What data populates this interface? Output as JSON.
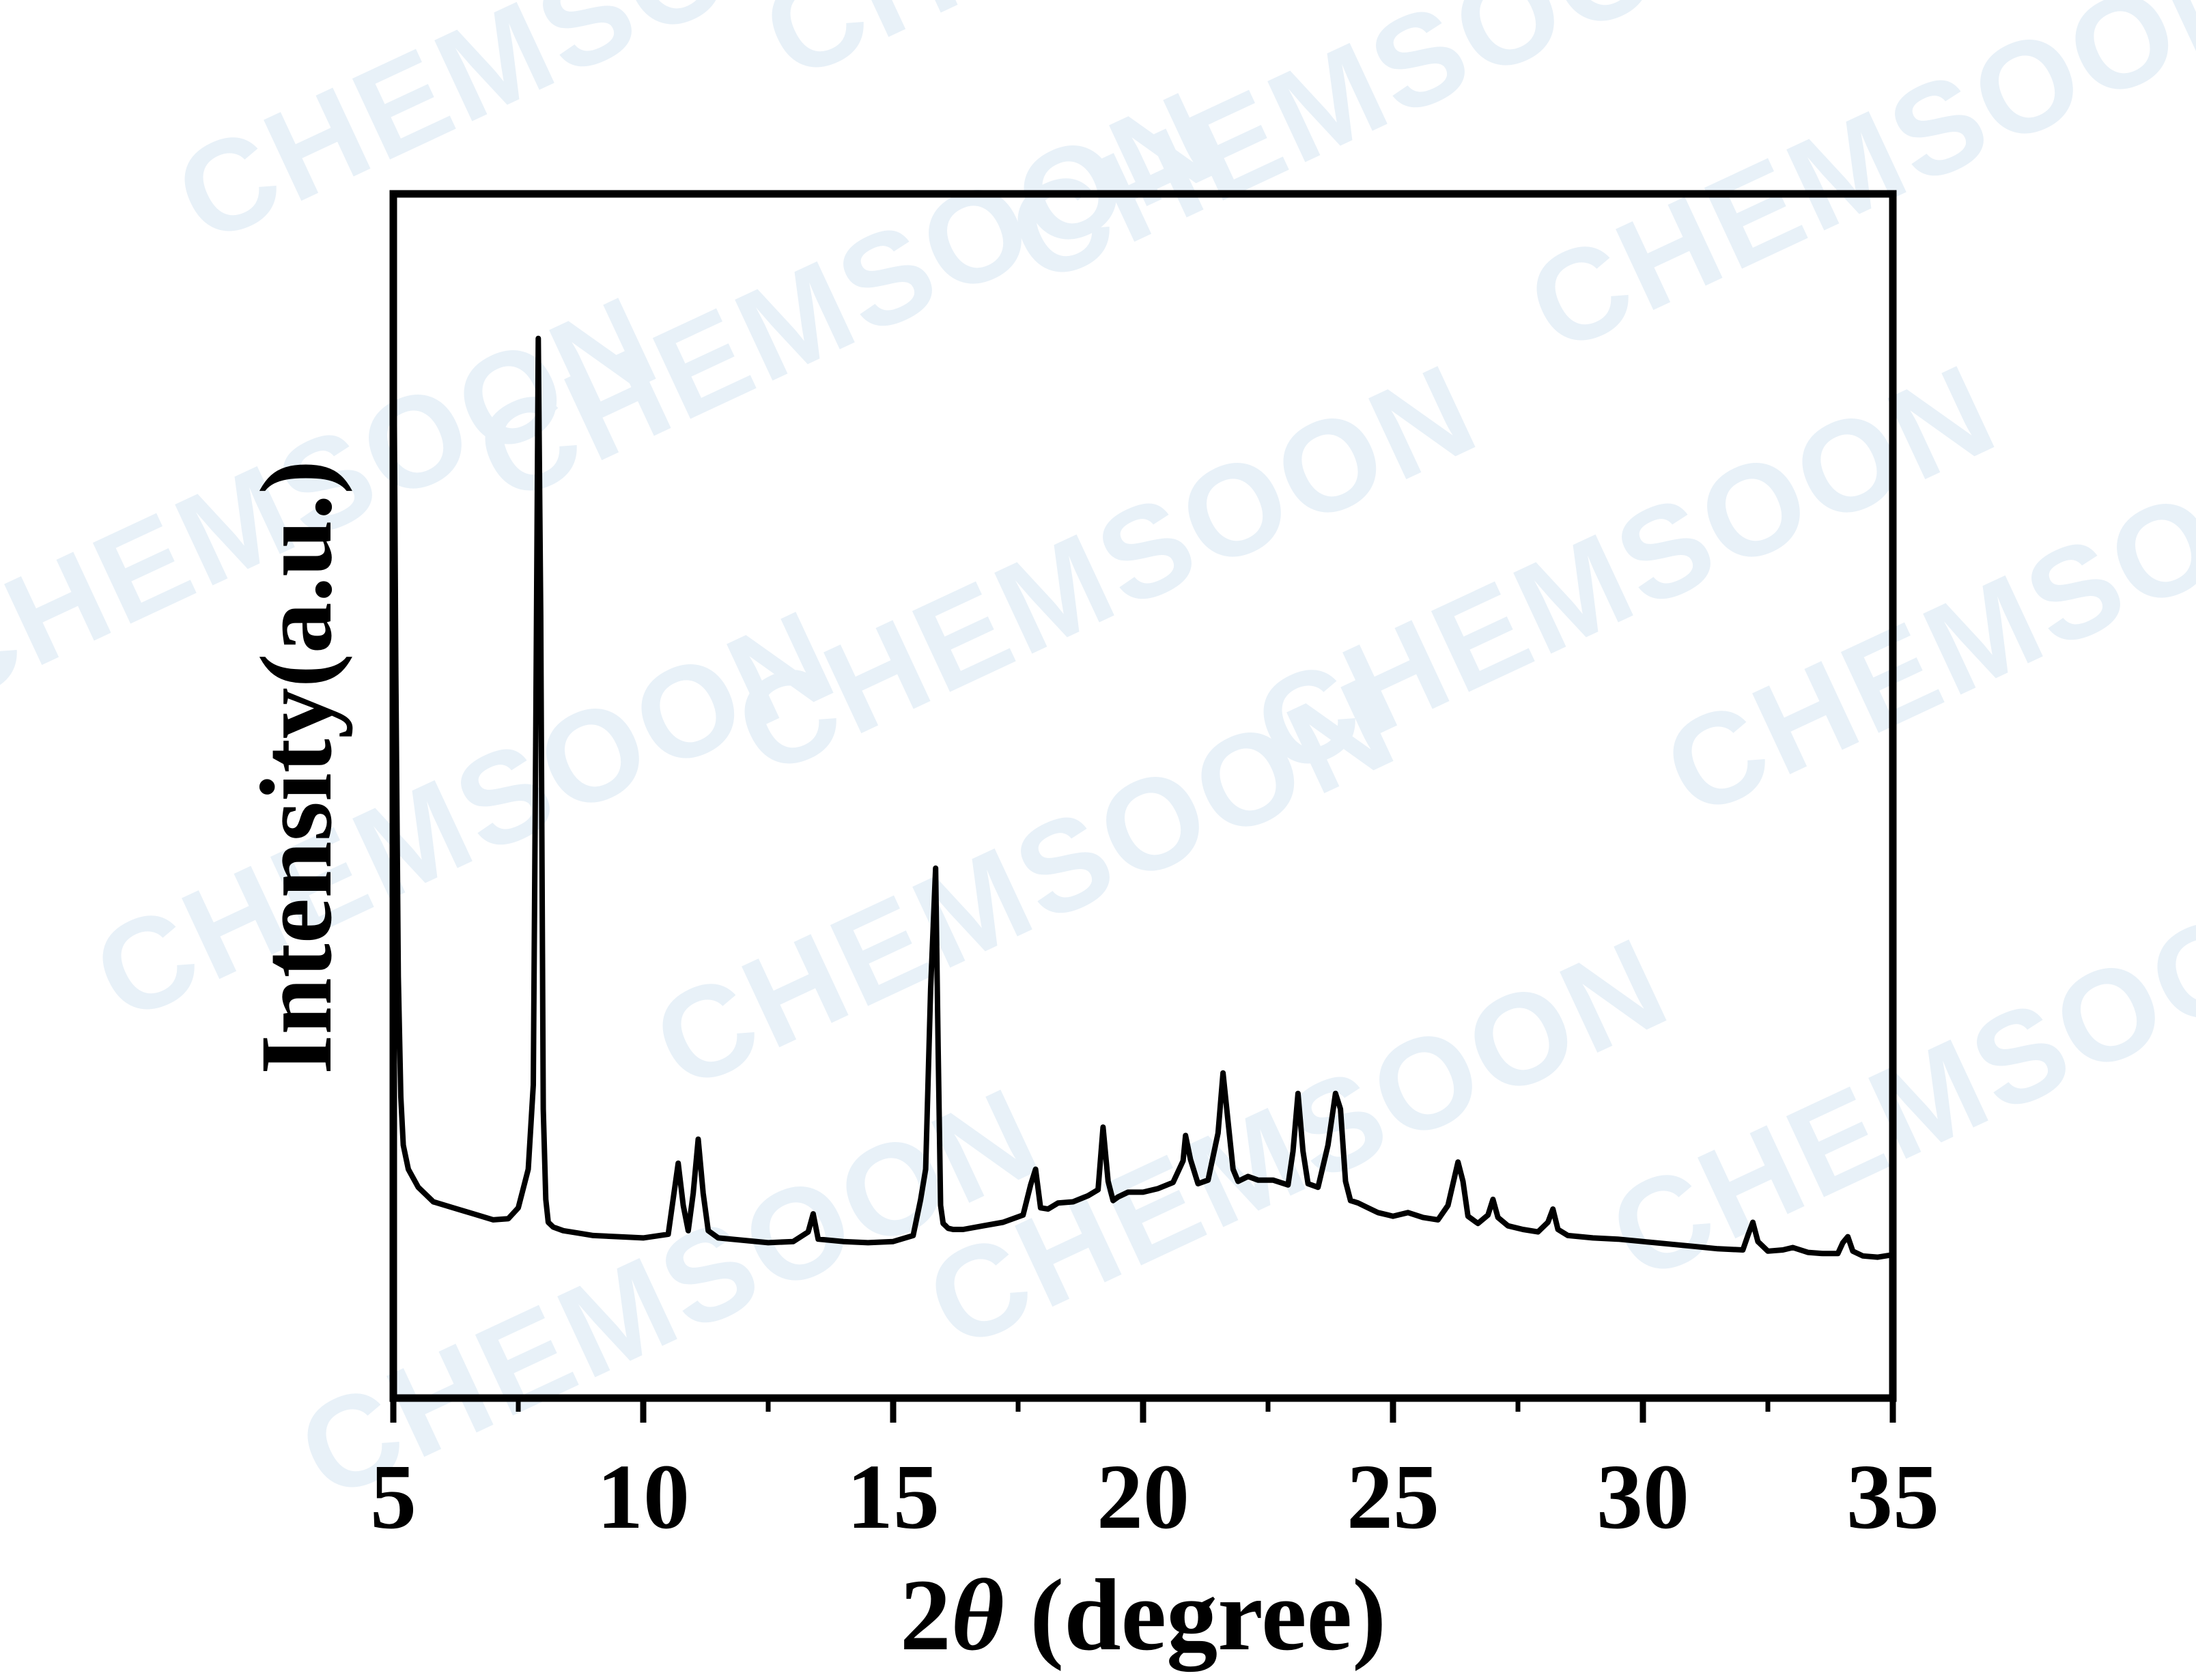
{
  "watermark": {
    "text": "CHEMSOON",
    "color": "#e8f1f8"
  },
  "chart_data": {
    "type": "line",
    "title": "",
    "xlabel_prefix": "2",
    "xlabel_symbol": "θ",
    "xlabel_suffix": " (degree)",
    "ylabel": "Intensity(a.u.)",
    "xlim": [
      5,
      35
    ],
    "ylim": [
      0,
      100
    ],
    "xticks": [
      5,
      10,
      15,
      20,
      25,
      30,
      35
    ],
    "xtick_labels": [
      "5",
      "10",
      "15",
      "20",
      "25",
      "30",
      "35"
    ],
    "yticks_shown": false,
    "grid": false,
    "legend": "none",
    "line_color": "#000000",
    "series": [
      {
        "x": [
          5.0,
          5.05,
          5.1,
          5.15,
          5.2,
          5.3,
          5.5,
          5.8,
          6.2,
          6.6,
          7.0,
          7.3,
          7.5,
          7.7,
          7.8,
          7.85,
          7.9,
          7.95,
          8.0,
          8.05,
          8.1,
          8.2,
          8.4,
          8.7,
          9.0,
          9.5,
          10.0,
          10.5,
          10.7,
          10.8,
          10.9,
          11.0,
          11.1,
          11.2,
          11.3,
          11.5,
          12.0,
          12.5,
          13.0,
          13.3,
          13.4,
          13.5,
          14.0,
          14.5,
          15.0,
          15.4,
          15.55,
          15.65,
          15.75,
          15.85,
          15.9,
          15.95,
          16.0,
          16.05,
          16.1,
          16.2,
          16.4,
          16.8,
          17.2,
          17.6,
          17.75,
          17.85,
          17.95,
          18.1,
          18.3,
          18.6,
          18.9,
          19.1,
          19.2,
          19.3,
          19.4,
          19.5,
          19.7,
          20.0,
          20.3,
          20.6,
          20.8,
          20.85,
          20.95,
          21.1,
          21.3,
          21.5,
          21.6,
          21.7,
          21.8,
          21.9,
          22.1,
          22.3,
          22.6,
          22.9,
          23.0,
          23.1,
          23.2,
          23.3,
          23.5,
          23.7,
          23.85,
          23.95,
          24.05,
          24.15,
          24.3,
          24.5,
          24.7,
          25.0,
          25.3,
          25.6,
          25.9,
          26.1,
          26.3,
          26.4,
          26.5,
          26.7,
          26.9,
          27.0,
          27.1,
          27.3,
          27.6,
          27.9,
          28.1,
          28.2,
          28.3,
          28.5,
          29.0,
          29.5,
          30.0,
          30.5,
          31.0,
          31.5,
          32.0,
          32.1,
          32.2,
          32.3,
          32.5,
          32.8,
          33.0,
          33.3,
          33.6,
          33.9,
          34.0,
          34.1,
          34.2,
          34.4,
          34.7,
          35.0
        ],
        "y": [
          95,
          60,
          35,
          25,
          21,
          19,
          17.5,
          16.3,
          15.8,
          15.3,
          14.8,
          14.9,
          15.8,
          19,
          26,
          55,
          88,
          65,
          24,
          16.5,
          14.6,
          14.2,
          13.9,
          13.7,
          13.5,
          13.4,
          13.3,
          13.6,
          19.5,
          16,
          13.9,
          17,
          21.5,
          17,
          13.9,
          13.3,
          13.1,
          12.9,
          13.0,
          13.8,
          15.3,
          13.2,
          13.0,
          12.9,
          13.0,
          13.5,
          16.5,
          19,
          34,
          44,
          29,
          16,
          14.5,
          14.3,
          14.1,
          14.0,
          14.0,
          14.3,
          14.6,
          15.2,
          17.7,
          19,
          15.8,
          15.7,
          16.2,
          16.3,
          16.8,
          17.3,
          22.5,
          18,
          16.4,
          16.7,
          17.1,
          17.1,
          17.4,
          17.9,
          19.7,
          21.8,
          19.8,
          17.8,
          18.1,
          22,
          27,
          23,
          19,
          18.0,
          18.4,
          18.1,
          18.1,
          17.7,
          20.5,
          25.3,
          20.5,
          17.8,
          17.5,
          21,
          25.3,
          24,
          18,
          16.4,
          16.2,
          15.8,
          15.4,
          15.1,
          15.4,
          15.0,
          14.8,
          16.0,
          19.6,
          18,
          15.1,
          14.5,
          15.2,
          16.5,
          15.0,
          14.3,
          14.0,
          13.8,
          14.6,
          15.7,
          14.0,
          13.5,
          13.3,
          13.2,
          13.0,
          12.8,
          12.6,
          12.4,
          12.3,
          13.5,
          14.6,
          13.0,
          12.2,
          12.3,
          12.5,
          12.1,
          12.0,
          12.0,
          12.9,
          13.4,
          12.2,
          11.8,
          11.7,
          11.9
        ]
      }
    ]
  }
}
